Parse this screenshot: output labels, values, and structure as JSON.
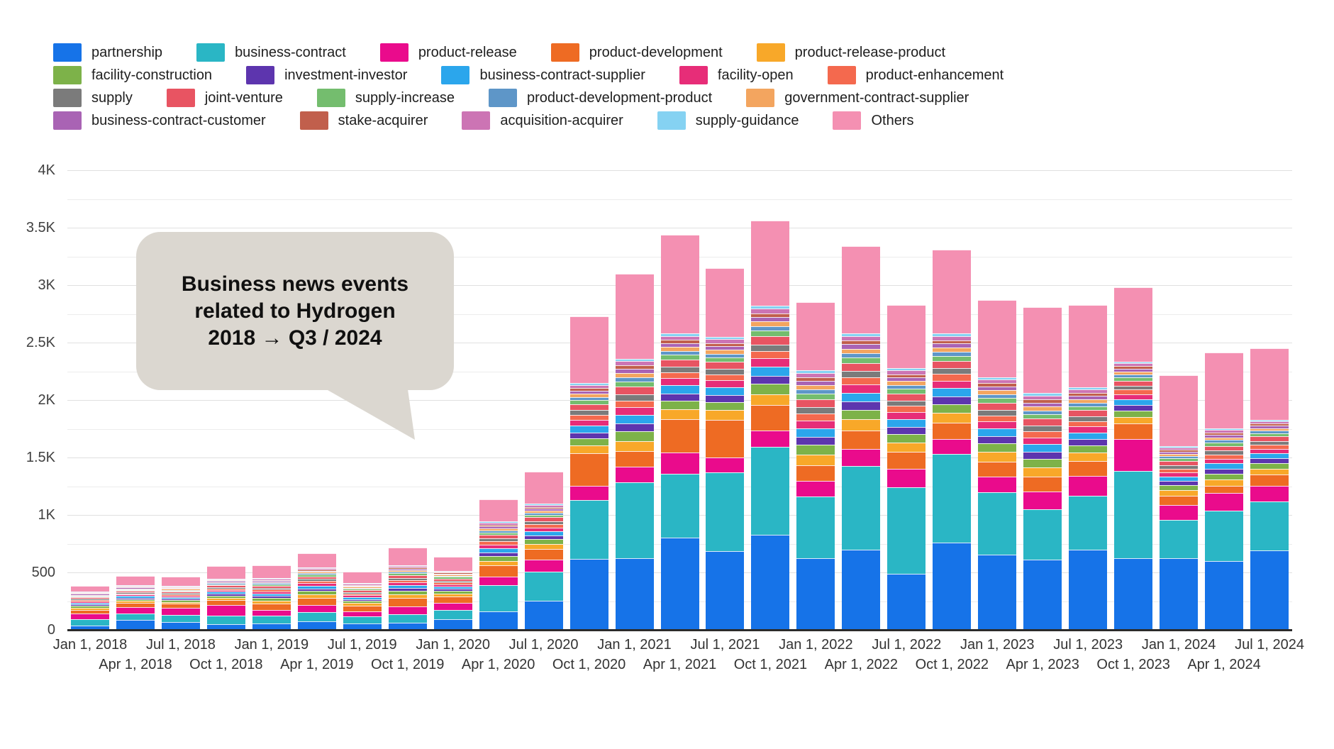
{
  "annotation": {
    "line1": "Business news events",
    "line2": "related to Hydrogen",
    "line3": "2018 → Q3 / 2024",
    "bubble_color": "#dbd7d0"
  },
  "axes": {
    "y_ticks": [
      {
        "label": "0",
        "value": 0
      },
      {
        "label": "500",
        "value": 500
      },
      {
        "label": "1K",
        "value": 1000
      },
      {
        "label": "1.5K",
        "value": 1500
      },
      {
        "label": "2K",
        "value": 2000
      },
      {
        "label": "2.5K",
        "value": 2500
      },
      {
        "label": "3K",
        "value": 3000
      },
      {
        "label": "3.5K",
        "value": 3500
      },
      {
        "label": "4K",
        "value": 4000
      }
    ],
    "grid_interval_minor": 250,
    "axis_color": "#2b2b2b",
    "grid_color": "#e0e0e0"
  },
  "legend_rows": [
    [
      0,
      1,
      2,
      3,
      4
    ],
    [
      5,
      6,
      7,
      8,
      9
    ],
    [
      10,
      11,
      12,
      13,
      14
    ],
    [
      15,
      16,
      17,
      18,
      19
    ]
  ],
  "chart_data": {
    "type": "bar",
    "stacked": true,
    "title": "Business news events related to Hydrogen 2018 → Q3 / 2024",
    "xlabel": "",
    "ylabel": "",
    "ylim": [
      0,
      4000
    ],
    "grid": "horizontal every 250",
    "legend_position": "top",
    "categories": [
      "Jan 1, 2018",
      "Apr 1, 2018",
      "Jul 1, 2018",
      "Oct 1, 2018",
      "Jan 1, 2019",
      "Apr 1, 2019",
      "Jul 1, 2019",
      "Oct 1, 2019",
      "Jan 1, 2020",
      "Apr 1, 2020",
      "Jul 1, 2020",
      "Oct 1, 2020",
      "Jan 1, 2021",
      "Apr 1, 2021",
      "Jul 1, 2021",
      "Oct 1, 2021",
      "Jan 1, 2022",
      "Apr 1, 2022",
      "Jul 1, 2022",
      "Oct 1, 2022",
      "Jan 1, 2023",
      "Apr 1, 2023",
      "Jul 1, 2023",
      "Oct 1, 2023",
      "Jan 1, 2024",
      "Apr 1, 2024",
      "Jul 1, 2024"
    ],
    "series": [
      {
        "name": "partnership",
        "color": "#1673e8",
        "values": [
          35,
          85,
          65,
          50,
          55,
          75,
          55,
          60,
          90,
          160,
          255,
          615,
          625,
          800,
          685,
          830,
          625,
          695,
          490,
          760,
          655,
          610,
          695,
          625,
          625,
          600,
          690
        ]
      },
      {
        "name": "business-contract",
        "color": "#2ab6c5",
        "values": [
          55,
          60,
          65,
          75,
          70,
          80,
          60,
          75,
          85,
          230,
          250,
          515,
          660,
          560,
          685,
          760,
          535,
          730,
          750,
          770,
          540,
          440,
          470,
          755,
          330,
          440,
          430
        ]
      },
      {
        "name": "product-release",
        "color": "#ea0b8c",
        "values": [
          50,
          55,
          60,
          90,
          50,
          60,
          45,
          70,
          60,
          75,
          105,
          125,
          135,
          185,
          130,
          145,
          135,
          150,
          160,
          130,
          140,
          155,
          175,
          280,
          130,
          150,
          135
        ]
      },
      {
        "name": "product-development",
        "color": "#ee6b23",
        "values": [
          36,
          36,
          36,
          44,
          56,
          65,
          50,
          72,
          55,
          94,
          95,
          280,
          135,
          290,
          330,
          225,
          135,
          160,
          150,
          140,
          130,
          130,
          130,
          135,
          80,
          65,
          95
        ]
      },
      {
        "name": "product-release-product",
        "color": "#f8a829",
        "values": [
          17,
          17,
          17,
          21,
          25,
          30,
          22,
          32,
          25,
          43,
          44,
          70,
          90,
          85,
          81,
          92,
          94,
          96,
          80,
          87,
          83,
          80,
          71,
          60,
          51,
          55,
          54
        ]
      },
      {
        "name": "facility-construction",
        "color": "#7db249",
        "values": [
          16,
          15,
          16,
          19,
          23,
          27,
          20,
          30,
          23,
          39,
          40,
          63,
          82,
          76,
          73,
          88,
          85,
          86,
          74,
          79,
          75,
          74,
          65,
          55,
          44,
          51,
          49
        ]
      },
      {
        "name": "investment-investor",
        "color": "#5d35ae",
        "values": [
          13,
          12,
          13,
          15,
          18,
          22,
          16,
          24,
          19,
          32,
          33,
          51,
          67,
          62,
          60,
          72,
          69,
          70,
          61,
          65,
          61,
          60,
          53,
          45,
          36,
          42,
          40
        ]
      },
      {
        "name": "business-contract-supplier",
        "color": "#2ba6ec",
        "values": [
          14,
          14,
          14,
          17,
          21,
          25,
          18,
          27,
          21,
          36,
          37,
          57,
          75,
          69,
          67,
          80,
          77,
          78,
          68,
          72,
          68,
          67,
          59,
          50,
          40,
          46,
          44
        ]
      },
      {
        "name": "facility-open",
        "color": "#e72d78",
        "values": [
          13,
          12,
          13,
          15,
          18,
          22,
          16,
          24,
          19,
          32,
          33,
          51,
          67,
          62,
          60,
          72,
          69,
          70,
          61,
          65,
          61,
          60,
          53,
          45,
          36,
          42,
          40
        ]
      },
      {
        "name": "product-enhancement",
        "color": "#f4694e",
        "values": [
          11,
          11,
          11,
          14,
          16,
          20,
          15,
          21,
          17,
          29,
          29,
          46,
          60,
          55,
          53,
          64,
          61,
          63,
          54,
          58,
          54,
          54,
          47,
          40,
          32,
          37,
          36
        ]
      },
      {
        "name": "supply",
        "color": "#7b7b7b",
        "values": [
          10,
          10,
          10,
          12,
          14,
          17,
          13,
          19,
          15,
          25,
          26,
          40,
          52,
          48,
          47,
          56,
          54,
          55,
          47,
          51,
          48,
          47,
          41,
          35,
          28,
          32,
          31
        ]
      },
      {
        "name": "joint-venture",
        "color": "#e85462",
        "values": [
          13,
          12,
          13,
          15,
          18,
          22,
          16,
          24,
          19,
          32,
          33,
          51,
          67,
          62,
          60,
          72,
          69,
          70,
          61,
          65,
          61,
          60,
          53,
          45,
          36,
          42,
          40
        ]
      },
      {
        "name": "supply-increase",
        "color": "#74bd6e",
        "values": [
          9,
          8,
          9,
          10,
          12,
          15,
          11,
          16,
          13,
          21,
          22,
          34,
          45,
          41,
          40,
          48,
          46,
          47,
          41,
          43,
          41,
          40,
          36,
          30,
          24,
          28,
          27
        ]
      },
      {
        "name": "product-development-product",
        "color": "#5e96c8",
        "values": [
          7,
          7,
          7,
          9,
          10,
          12,
          9,
          13,
          10,
          18,
          18,
          28,
          37,
          34,
          33,
          40,
          38,
          39,
          34,
          36,
          34,
          34,
          30,
          25,
          20,
          23,
          22
        ]
      },
      {
        "name": "government-contract-supplier",
        "color": "#f3a55f",
        "values": [
          7,
          7,
          7,
          9,
          10,
          12,
          9,
          13,
          10,
          18,
          18,
          28,
          37,
          34,
          33,
          40,
          38,
          39,
          34,
          36,
          34,
          34,
          30,
          25,
          20,
          23,
          22
        ]
      },
      {
        "name": "business-contract-customer",
        "color": "#a963b4",
        "values": [
          7,
          7,
          7,
          9,
          10,
          12,
          9,
          13,
          10,
          18,
          18,
          28,
          37,
          34,
          33,
          40,
          38,
          39,
          34,
          36,
          34,
          34,
          30,
          25,
          20,
          23,
          22
        ]
      },
      {
        "name": "stake-acquirer",
        "color": "#c15f4c",
        "values": [
          6,
          6,
          6,
          7,
          8,
          10,
          7,
          11,
          8,
          14,
          15,
          23,
          30,
          28,
          27,
          32,
          31,
          31,
          27,
          29,
          27,
          27,
          24,
          20,
          16,
          19,
          18
        ]
      },
      {
        "name": "acquisition-acquirer",
        "color": "#cc74b4",
        "values": [
          7,
          7,
          7,
          9,
          10,
          12,
          9,
          13,
          10,
          18,
          18,
          28,
          37,
          34,
          33,
          40,
          38,
          39,
          34,
          36,
          34,
          34,
          30,
          25,
          20,
          23,
          22
        ]
      },
      {
        "name": "supply-guidance",
        "color": "#85d2f2",
        "values": [
          4,
          4,
          4,
          5,
          6,
          7,
          5,
          8,
          6,
          11,
          11,
          17,
          22,
          21,
          20,
          24,
          23,
          23,
          20,
          22,
          20,
          20,
          18,
          15,
          12,
          14,
          13
        ]
      },
      {
        "name": "Others",
        "color": "#f490b2",
        "values": [
          50,
          80,
          80,
          110,
          110,
          125,
          100,
          150,
          120,
          190,
          275,
          580,
          740,
          860,
          600,
          740,
          590,
          760,
          550,
          730,
          670,
          750,
          720,
          650,
          620,
          660,
          620
        ]
      }
    ]
  }
}
